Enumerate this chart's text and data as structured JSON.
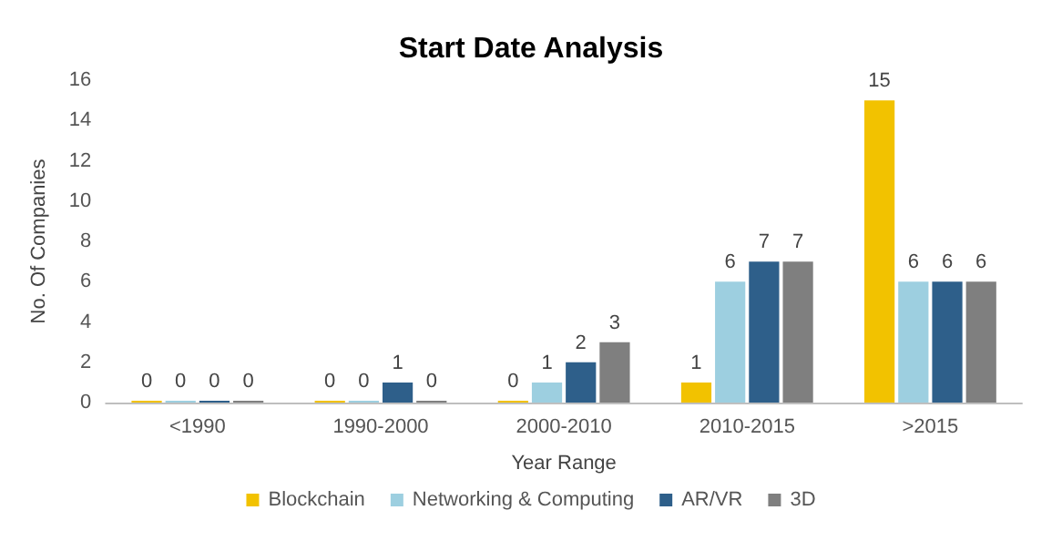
{
  "chart_data": {
    "type": "bar",
    "title": "Start Date Analysis",
    "xlabel": "Year Range",
    "ylabel": "No. Of Companies",
    "categories": [
      "<1990",
      "1990-2000",
      "2000-2010",
      "2010-2015",
      ">2015"
    ],
    "series": [
      {
        "name": "Blockchain",
        "color": "#f2c200",
        "values": [
          0,
          0,
          0,
          1,
          15
        ]
      },
      {
        "name": "Networking & Computing",
        "color": "#9dcfe0",
        "values": [
          0,
          0,
          1,
          6,
          6
        ]
      },
      {
        "name": "AR/VR",
        "color": "#2e5f8a",
        "values": [
          0,
          1,
          2,
          7,
          6
        ]
      },
      {
        "name": "3D",
        "color": "#7f7f7f",
        "values": [
          0,
          0,
          3,
          7,
          6
        ]
      }
    ],
    "ylim": [
      0,
      16
    ],
    "yticks": [
      0,
      2,
      4,
      6,
      8,
      10,
      12,
      14,
      16
    ],
    "grid": false,
    "legend": "bottom",
    "data_labels": true
  }
}
